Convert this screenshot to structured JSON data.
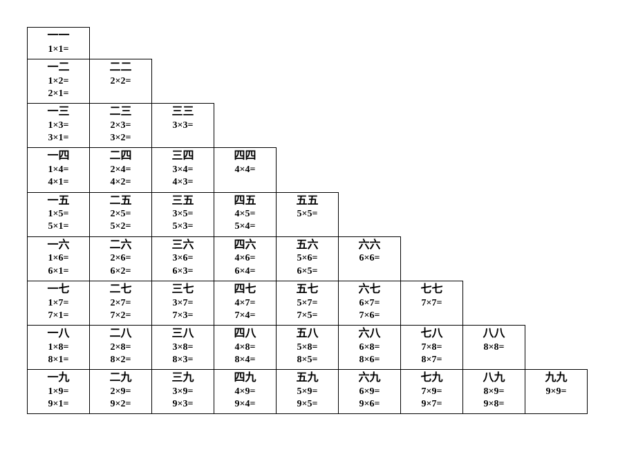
{
  "table": {
    "type": "multiplication-table",
    "rows": 9,
    "cols": 9,
    "border_color": "#000000",
    "background_color": "#ffffff",
    "chinese_digits": [
      "一",
      "二",
      "三",
      "四",
      "五",
      "六",
      "七",
      "八",
      "九"
    ],
    "cells": [
      [
        {
          "hanzi": "一一",
          "eq1": "1×1="
        }
      ],
      [
        {
          "hanzi": "一二",
          "eq1": "1×2=",
          "eq2": "2×1="
        },
        {
          "hanzi": "二二",
          "eq1": "2×2="
        }
      ],
      [
        {
          "hanzi": "一三",
          "eq1": "1×3=",
          "eq2": "3×1="
        },
        {
          "hanzi": "二三",
          "eq1": "2×3=",
          "eq2": "3×2="
        },
        {
          "hanzi": "三三",
          "eq1": "3×3="
        }
      ],
      [
        {
          "hanzi": "一四",
          "eq1": "1×4=",
          "eq2": "4×1="
        },
        {
          "hanzi": "二四",
          "eq1": "2×4=",
          "eq2": "4×2="
        },
        {
          "hanzi": "三四",
          "eq1": "3×4=",
          "eq2": "4×3="
        },
        {
          "hanzi": "四四",
          "eq1": "4×4="
        }
      ],
      [
        {
          "hanzi": "一五",
          "eq1": "1×5=",
          "eq2": "5×1="
        },
        {
          "hanzi": "二五",
          "eq1": "2×5=",
          "eq2": "5×2="
        },
        {
          "hanzi": "三五",
          "eq1": "3×5=",
          "eq2": "5×3="
        },
        {
          "hanzi": "四五",
          "eq1": "4×5=",
          "eq2": "5×4="
        },
        {
          "hanzi": "五五",
          "eq1": "5×5="
        }
      ],
      [
        {
          "hanzi": "一六",
          "eq1": "1×6=",
          "eq2": "6×1="
        },
        {
          "hanzi": "二六",
          "eq1": "2×6=",
          "eq2": "6×2="
        },
        {
          "hanzi": "三六",
          "eq1": "3×6=",
          "eq2": "6×3="
        },
        {
          "hanzi": "四六",
          "eq1": "4×6=",
          "eq2": "6×4="
        },
        {
          "hanzi": "五六",
          "eq1": "5×6=",
          "eq2": "6×5="
        },
        {
          "hanzi": "六六",
          "eq1": "6×6="
        }
      ],
      [
        {
          "hanzi": "一七",
          "eq1": "1×7=",
          "eq2": "7×1="
        },
        {
          "hanzi": "二七",
          "eq1": "2×7=",
          "eq2": "7×2="
        },
        {
          "hanzi": "三七",
          "eq1": "3×7=",
          "eq2": "7×3="
        },
        {
          "hanzi": "四七",
          "eq1": "4×7=",
          "eq2": "7×4="
        },
        {
          "hanzi": "五七",
          "eq1": "5×7=",
          "eq2": "7×5="
        },
        {
          "hanzi": "六七",
          "eq1": "6×7=",
          "eq2": "7×6="
        },
        {
          "hanzi": "七七",
          "eq1": "7×7="
        }
      ],
      [
        {
          "hanzi": "一八",
          "eq1": "1×8=",
          "eq2": "8×1="
        },
        {
          "hanzi": "二八",
          "eq1": "2×8=",
          "eq2": "8×2="
        },
        {
          "hanzi": "三八",
          "eq1": "3×8=",
          "eq2": "8×3="
        },
        {
          "hanzi": "四八",
          "eq1": "4×8=",
          "eq2": "8×4="
        },
        {
          "hanzi": "五八",
          "eq1": "5×8=",
          "eq2": "8×5="
        },
        {
          "hanzi": "六八",
          "eq1": "6×8=",
          "eq2": "8×6="
        },
        {
          "hanzi": "七八",
          "eq1": "7×8=",
          "eq2": "8×7="
        },
        {
          "hanzi": "八八",
          "eq1": "8×8="
        }
      ],
      [
        {
          "hanzi": "一九",
          "eq1": "1×9=",
          "eq2": "9×1="
        },
        {
          "hanzi": "二九",
          "eq1": "2×9=",
          "eq2": "9×2="
        },
        {
          "hanzi": "三九",
          "eq1": "3×9=",
          "eq2": "9×3="
        },
        {
          "hanzi": "四九",
          "eq1": "4×9=",
          "eq2": "9×4="
        },
        {
          "hanzi": "五九",
          "eq1": "5×9=",
          "eq2": "9×5="
        },
        {
          "hanzi": "六九",
          "eq1": "6×9=",
          "eq2": "9×6="
        },
        {
          "hanzi": "七九",
          "eq1": "7×9=",
          "eq2": "9×7="
        },
        {
          "hanzi": "八九",
          "eq1": "8×9=",
          "eq2": "9×8="
        },
        {
          "hanzi": "九九",
          "eq1": "9×9="
        }
      ]
    ]
  }
}
